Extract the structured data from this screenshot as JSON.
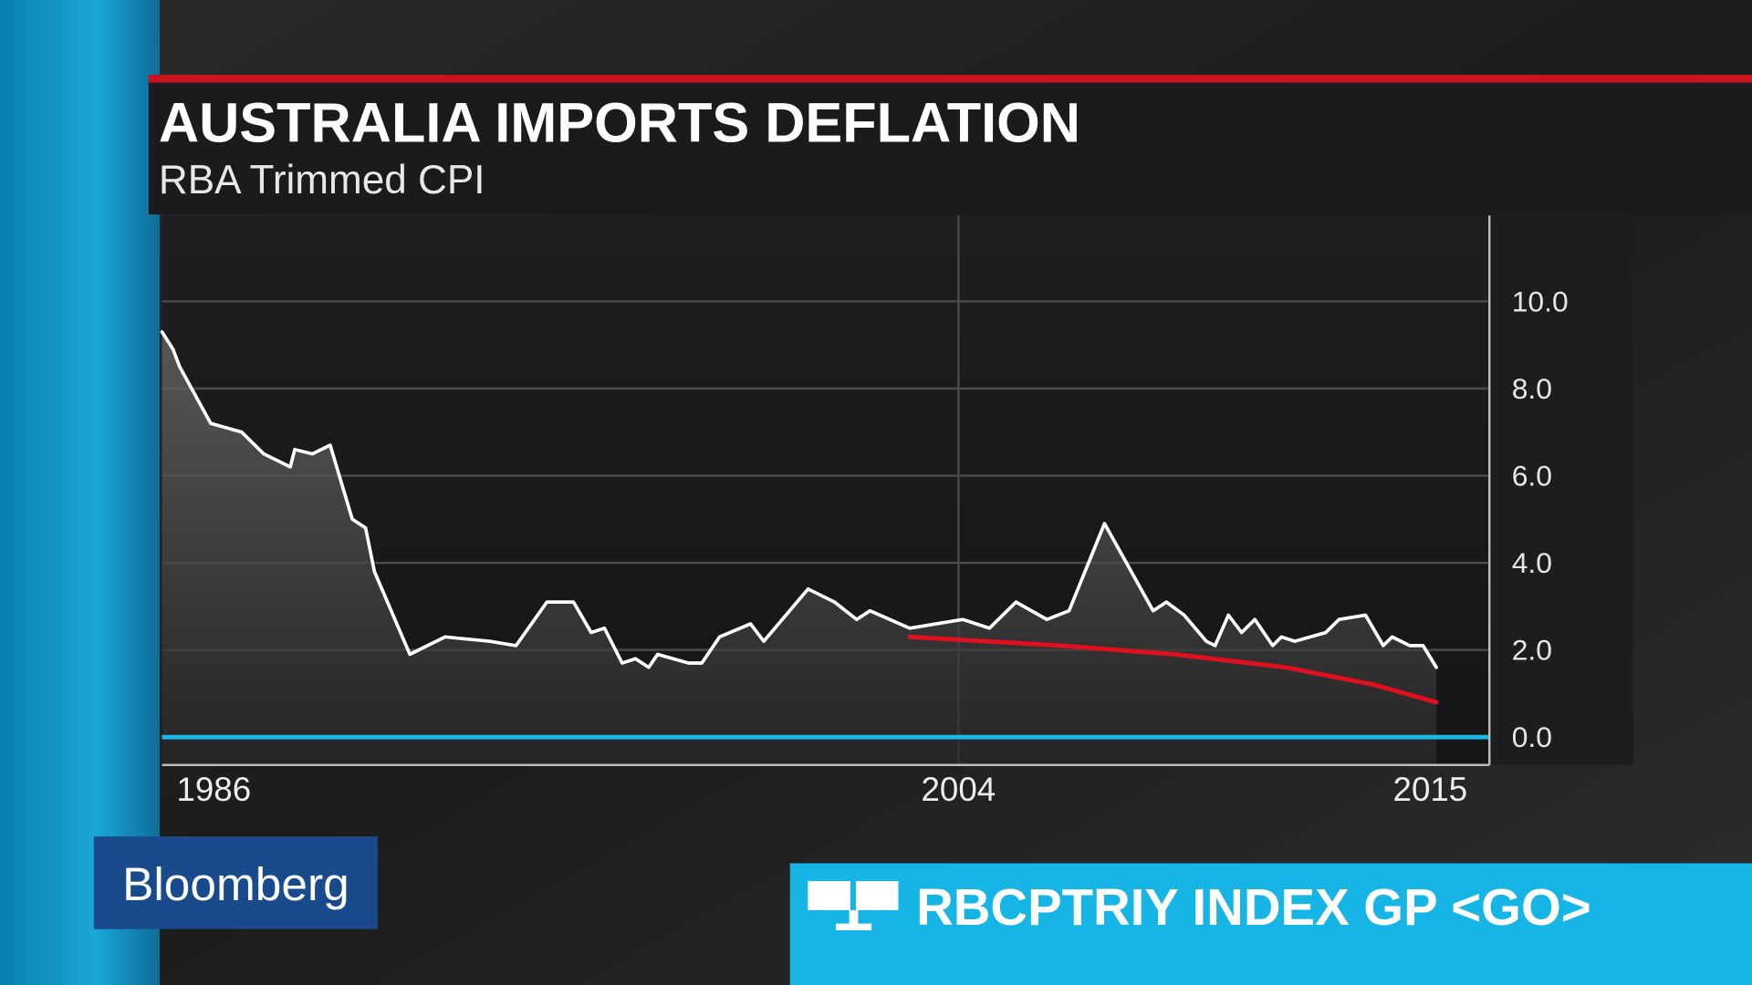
{
  "chart_data": {
    "type": "line",
    "title": "AUSTRALIA IMPORTS DEFLATION",
    "subtitle": "RBA Trimmed CPI",
    "series": [
      {
        "color": "#ffffff",
        "x": [
          1986.0,
          1986.25,
          1986.4,
          1987.1,
          1987.8,
          1988.3,
          1988.9,
          1989.0,
          1989.4,
          1989.8,
          1990.3,
          1990.6,
          1990.8,
          1991.6,
          1992.4,
          1993.4,
          1994.0,
          1994.7,
          1995.3,
          1995.7,
          1996.0,
          1996.4,
          1996.7,
          1997.0,
          1997.2,
          1997.9,
          1998.2,
          1998.6,
          1999.3,
          1999.6,
          2000.6,
          2001.2,
          2001.7,
          2002.0,
          2002.9,
          2004.1,
          2004.7,
          2005.3,
          2006.0,
          2006.5,
          2007.3,
          2008.4,
          2008.7,
          2009.1,
          2009.6,
          2009.8,
          2010.1,
          2010.4,
          2010.7,
          2011.1,
          2011.3,
          2011.6,
          2012.3,
          2012.6,
          2013.2,
          2013.6,
          2013.8,
          2014.2,
          2014.5,
          2014.8
        ],
        "values": [
          9.3,
          8.9,
          8.5,
          7.2,
          7.0,
          6.5,
          6.2,
          6.6,
          6.5,
          6.7,
          5.0,
          4.8,
          3.8,
          1.9,
          2.3,
          2.2,
          2.1,
          3.1,
          3.1,
          2.4,
          2.5,
          1.7,
          1.8,
          1.6,
          1.9,
          1.7,
          1.7,
          2.3,
          2.6,
          2.2,
          3.4,
          3.1,
          2.7,
          2.9,
          2.5,
          2.7,
          2.5,
          3.1,
          2.7,
          2.9,
          4.9,
          2.9,
          3.1,
          2.8,
          2.2,
          2.1,
          2.8,
          2.4,
          2.7,
          2.1,
          2.3,
          2.2,
          2.4,
          2.7,
          2.8,
          2.1,
          2.3,
          2.1,
          2.1,
          1.6
        ]
      },
      {
        "color": "#e0101e",
        "x": [
          2002.9,
          2006.3,
          2008.9,
          2011.4,
          2013.4,
          2014.8
        ],
        "values": [
          2.3,
          2.1,
          1.9,
          1.6,
          1.2,
          0.8
        ]
      }
    ],
    "xlim": [
      1986,
      2016
    ],
    "xticks": [
      1986,
      2004,
      2015
    ],
    "ylim": [
      -0.64,
      11.97
    ],
    "yticks": [
      {
        "value": 0,
        "label": "0.0"
      },
      {
        "value": 2,
        "label": "2.0"
      },
      {
        "value": 4,
        "label": "4.0"
      },
      {
        "value": 6,
        "label": "6.0"
      },
      {
        "value": 8,
        "label": "8.0"
      },
      {
        "value": 10,
        "label": "10.0"
      }
    ],
    "grid": true,
    "zero_line_color": "#19b8e6"
  },
  "branding": {
    "logo": "Bloomberg",
    "ticker": "RBCPTRIY INDEX GP <GO>"
  }
}
